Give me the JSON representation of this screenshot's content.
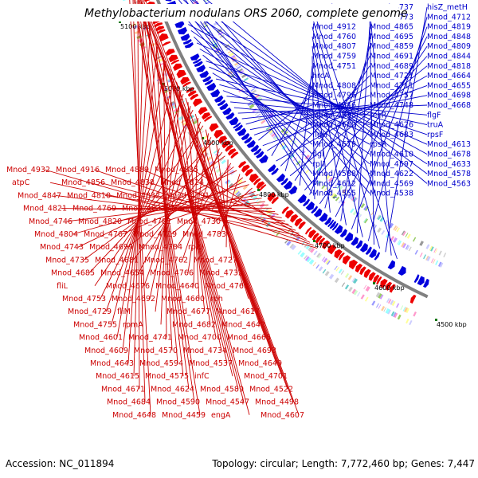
{
  "map": {
    "title": "Methylobacterium nodulans ORS 2060, complete genome",
    "accession": "Accession: NC_011894",
    "summary": "Topology: circular; Length: 7,772,460 bp; Genes: 7,447",
    "colors": {
      "backbone": "#808080",
      "forward_cds": "#0000dd",
      "reverse_cds": "#ee0000",
      "forward_label": "#0000cc",
      "reverse_label": "#cc0000",
      "tick_mark": "#007700"
    },
    "scale_ticks": [
      {
        "label": "5100 kbp",
        "kbp": 5100
      },
      {
        "label": "5000 kbp",
        "kbp": 5000
      },
      {
        "label": "4900 kbp",
        "kbp": 4900
      },
      {
        "label": "4800 kbp",
        "kbp": 4800
      },
      {
        "label": "4700 kbp",
        "kbp": 4700
      },
      {
        "label": "4600 kbp",
        "kbp": 4600
      },
      {
        "label": "4500 kbp",
        "kbp": 4500
      }
    ],
    "forward_labels": [
      "Mnod_4749",
      "Mnod_4737",
      "hisZ_metH",
      "Mnod_4891",
      "Mnod_4773",
      "Mnod_4712",
      "Mnod_4912",
      "Mnod_4865",
      "Mnod_4819",
      "Mnod_4760",
      "Mnod_4695",
      "Mnod_4848",
      "Mnod_4807",
      "Mnod_4859",
      "Mnod_4809",
      "Mnod_4759",
      "Mnod_4691",
      "Mnod_4844",
      "Mnod_4751",
      "Mnod_4689",
      "Mnod_4818",
      "hrcA",
      "Mnod_4721",
      "Mnod_4664",
      "Mnod_4808",
      "Mnod_4711",
      "Mnod_4655",
      "Mnod_4796",
      "Mnod_4757",
      "Mnod_4698",
      "Mnod_4646",
      "Mnod_4748",
      "Mnod_4668",
      "Mnod_4638",
      "recR",
      "flgF",
      "Mnod_4680",
      "Mnod_4626",
      "truA",
      "flgH",
      "Mnod_4683",
      "rpsF",
      "Mnod_4679",
      "rpsR",
      "Mnod_4613",
      "flgI",
      "Mnod_4610",
      "Mnod_4678",
      "rplI",
      "Mnod_4597",
      "Mnod_4633",
      "Mnod_4588",
      "Mnod_4622",
      "Mnod_4578",
      "Mnod_4612",
      "Mnod_4569",
      "Mnod_4563",
      "Mnod_4555",
      "Mnod_4538"
    ],
    "reverse_labels": [
      "Mnod_4932",
      "Mnod_4916",
      "Mnod_4889",
      "Mnod_4885",
      "atpC",
      "Mnod_4856",
      "Mnod_4838",
      "Mnod_4824",
      "Mnod_4847",
      "Mnod_4810",
      "Mnod_4832",
      "Mnod_4791",
      "Mnod_4821",
      "Mnod_4769",
      "Mnod_4831",
      "Mnod_4797",
      "Mnod_4746",
      "Mnod_4820",
      "Mnod_4782",
      "Mnod_4730",
      "Mnod_4804",
      "Mnod_4767",
      "Mnod_4719",
      "Mnod_4783",
      "Mnod_4743",
      "Mnod_4699",
      "Mnod_4784",
      "rplU",
      "Mnod_4735",
      "Mnod_4681",
      "Mnod_4762",
      "Mnod_4727",
      "Mnod_4685",
      "Mnod_4654",
      "Mnod_4766",
      "Mnod_4732",
      "fliL",
      "Mnod_4676",
      "Mnod_4640",
      "Mnod_4768",
      "Mnod_4753",
      "Mnod_4692",
      "Mnod_4660",
      "rph",
      "Mnod_4729",
      "fliM",
      "Mnod_4677",
      "Mnod_4617",
      "Mnod_4755",
      "rpmA",
      "Mnod_4682",
      "Mnod_4642",
      "Mnod_4601",
      "Mnod_4741",
      "Mnod_4700",
      "Mnod_4665",
      "Mnod_4609",
      "Mnod_4570",
      "Mnod_4734",
      "Mnod_4693",
      "Mnod_4643",
      "Mnod_4594",
      "Mnod_4537",
      "Mnod_4649",
      "Mnod_4615",
      "Mnod_4575",
      "infC",
      "Mnod_4701",
      "Mnod_4671",
      "Mnod_4624",
      "Mnod_4589",
      "Mnod_4522",
      "Mnod_4684",
      "Mnod_4590",
      "Mnod_4547",
      "Mnod_4498",
      "Mnod_4648",
      "Mnod_4459",
      "engA",
      "Mnod_4607"
    ]
  }
}
